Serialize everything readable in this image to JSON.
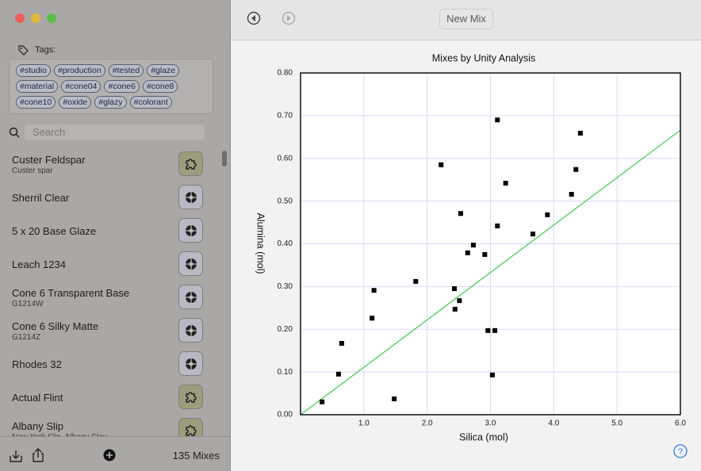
{
  "sidebar": {
    "tags_label": "Tags:",
    "tags": [
      [
        "#studio",
        "#production",
        "#tested",
        "#glaze"
      ],
      [
        "#material",
        "#cone04",
        "#cone6",
        "#cone8"
      ],
      [
        "#cone10",
        "#oxide",
        "#glazy",
        "#colorant"
      ]
    ],
    "search_placeholder": "Search",
    "items": [
      {
        "name": "Custer Feldspar",
        "subtitle": "Custer spar"
      },
      {
        "name": "Sherril Clear"
      },
      {
        "name": "5 x 20 Base Glaze"
      },
      {
        "name": "Leach 1234"
      },
      {
        "name": "Cone 6 Transparent Base",
        "subtitle": "G1214W"
      },
      {
        "name": "Cone 6 Silky Matte",
        "subtitle": "G1214Z"
      },
      {
        "name": "Rhodes 32"
      },
      {
        "name": "Actual Flint"
      },
      {
        "name": "Albany Slip",
        "subtitle": "New York Slip, Albany Clay"
      }
    ],
    "count_label": "135 Mixes"
  },
  "toolbar": {
    "button": "New Mix"
  },
  "chart_data": {
    "type": "scatter",
    "title": "Mixes by Unity Analysis",
    "x_label": "Silica (mol)",
    "y_label": "Alumina (mol)",
    "x": [
      0.34,
      0.6,
      0.65,
      1.13,
      1.16,
      1.48,
      1.82,
      2.22,
      2.43,
      2.44,
      2.51,
      2.53,
      2.64,
      2.73,
      2.91,
      2.96,
      3.03,
      3.07,
      3.11,
      3.11,
      3.24,
      3.67,
      3.9,
      4.28,
      4.35,
      4.42
    ],
    "values": [
      0.03,
      0.095,
      0.167,
      0.226,
      0.291,
      0.037,
      0.312,
      0.585,
      0.295,
      0.247,
      0.267,
      0.471,
      0.379,
      0.397,
      0.375,
      0.197,
      0.093,
      0.197,
      0.69,
      0.442,
      0.542,
      0.423,
      0.468,
      0.516,
      0.574,
      0.659
    ],
    "color": "#000000",
    "trend_line": {
      "x": [
        0,
        6
      ],
      "values": [
        0,
        0.666
      ],
      "color": "#3ec45a"
    },
    "xlim": [
      0,
      6
    ],
    "ylim": [
      0,
      0.8
    ],
    "xticks": [
      {
        "value": 1,
        "label": "1.0"
      },
      {
        "value": 2,
        "label": "2.0"
      },
      {
        "value": 3,
        "label": "3.0"
      },
      {
        "value": 4,
        "label": "4.0"
      },
      {
        "value": 5,
        "label": "5.0"
      },
      {
        "value": 6,
        "label": "6.0"
      }
    ],
    "yticks": [
      {
        "value": 0,
        "label": "0.00"
      },
      {
        "value": 0.1,
        "label": "0.10"
      },
      {
        "value": 0.2,
        "label": "0.20"
      },
      {
        "value": 0.3,
        "label": "0.30"
      },
      {
        "value": 0.4,
        "label": "0.40"
      },
      {
        "value": 0.5,
        "label": "0.50"
      },
      {
        "value": 0.6,
        "label": "0.60"
      },
      {
        "value": 0.7,
        "label": "0.70"
      },
      {
        "value": 0.8,
        "label": "0.80"
      }
    ],
    "grid": true,
    "grid_color": "#d8d8f4"
  }
}
